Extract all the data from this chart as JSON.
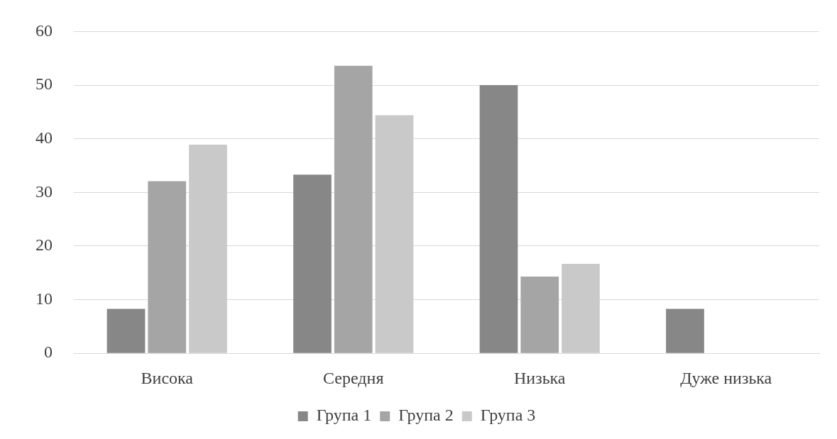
{
  "chart_data": {
    "type": "bar",
    "categories": [
      "Висока",
      "Середня",
      "Низька",
      "Дуже низька"
    ],
    "series": [
      {
        "name": "Група 1",
        "color": "#878787",
        "values": [
          8.3,
          33.3,
          50,
          8.3
        ]
      },
      {
        "name": "Група 2",
        "color": "#a5a5a5",
        "values": [
          32.1,
          53.6,
          14.3,
          0
        ]
      },
      {
        "name": "Група 3",
        "color": "#c9c9c9",
        "values": [
          38.9,
          44.4,
          16.7,
          0
        ]
      }
    ],
    "ylim": [
      0,
      60
    ],
    "yticks": [
      0,
      10,
      20,
      30,
      40,
      50,
      60
    ],
    "grid": "y",
    "legend": "bottom"
  }
}
